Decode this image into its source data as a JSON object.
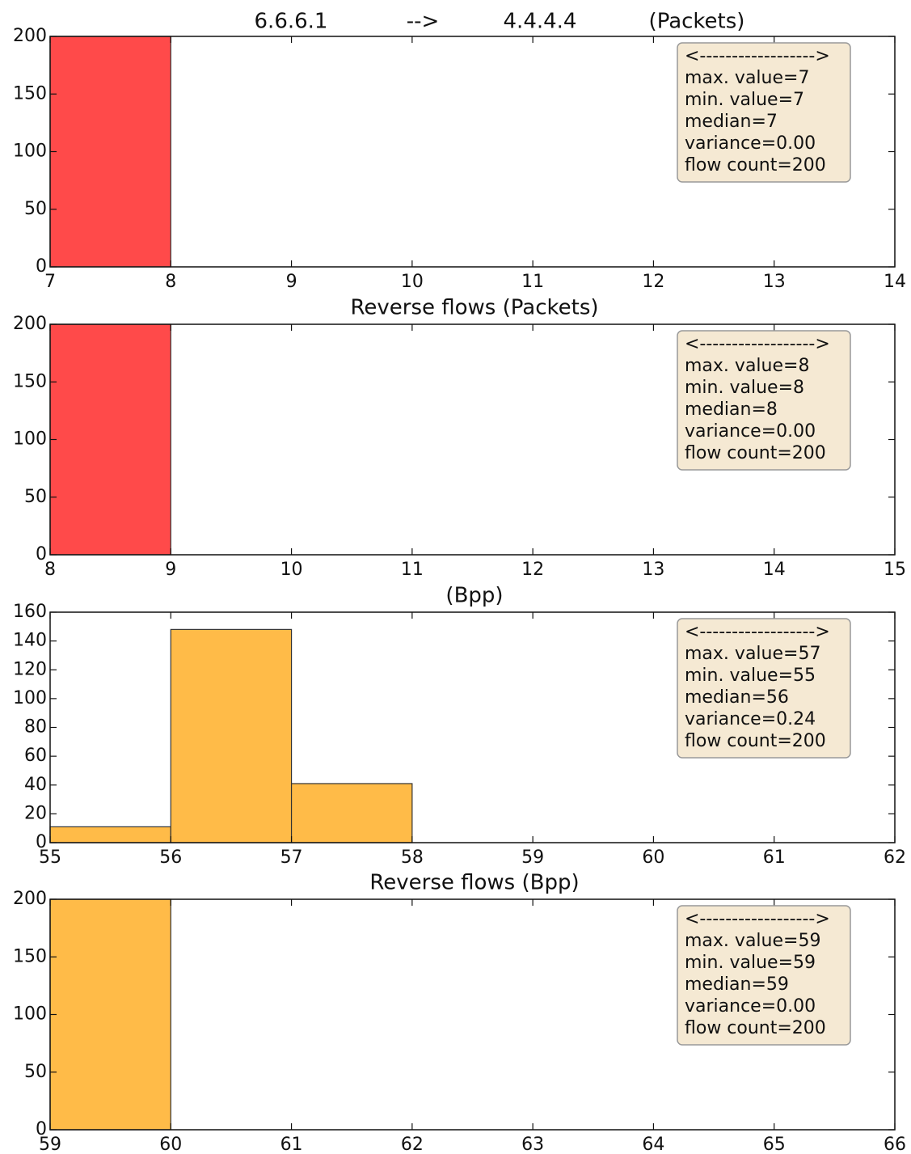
{
  "chart_data": [
    {
      "type": "histogram",
      "title": [
        "6.6.6.1",
        "-->",
        "4.4.4.4",
        "(Packets)"
      ],
      "bins": [
        7,
        8
      ],
      "values": [
        200
      ],
      "color": "#ff4a4a",
      "xlim": [
        7,
        14
      ],
      "xticks": [
        7,
        8,
        9,
        10,
        11,
        12,
        13,
        14
      ],
      "ylim": [
        0,
        200
      ],
      "yticks": [
        0,
        50,
        100,
        150,
        200
      ],
      "annotation": [
        "<------------------>",
        "max. value=7",
        "min. value=7",
        "median=7",
        "variance=0.00",
        "flow count=200"
      ]
    },
    {
      "type": "histogram",
      "title": "Reverse flows (Packets)",
      "bins": [
        8,
        9
      ],
      "values": [
        200
      ],
      "color": "#ff4a4a",
      "xlim": [
        8,
        15
      ],
      "xticks": [
        8,
        9,
        10,
        11,
        12,
        13,
        14,
        15
      ],
      "ylim": [
        0,
        200
      ],
      "yticks": [
        0,
        50,
        100,
        150,
        200
      ],
      "annotation": [
        "<------------------>",
        "max. value=8",
        "min. value=8",
        "median=8",
        "variance=0.00",
        "flow count=200"
      ]
    },
    {
      "type": "histogram",
      "title": "(Bpp)",
      "bins": [
        55,
        56,
        57,
        58
      ],
      "values": [
        11,
        148,
        41
      ],
      "color": "#ffbb48",
      "xlim": [
        55,
        62
      ],
      "xticks": [
        55,
        56,
        57,
        58,
        59,
        60,
        61,
        62
      ],
      "ylim": [
        0,
        160
      ],
      "yticks": [
        0,
        20,
        40,
        60,
        80,
        100,
        120,
        140,
        160
      ],
      "annotation": [
        "<------------------>",
        "max. value=57",
        "min. value=55",
        "median=56",
        "variance=0.24",
        "flow count=200"
      ]
    },
    {
      "type": "histogram",
      "title": "Reverse flows (Bpp)",
      "bins": [
        59,
        60
      ],
      "values": [
        200
      ],
      "color": "#ffbb48",
      "xlim": [
        59,
        66
      ],
      "xticks": [
        59,
        60,
        61,
        62,
        63,
        64,
        65,
        66
      ],
      "ylim": [
        0,
        200
      ],
      "yticks": [
        0,
        50,
        100,
        150,
        200
      ],
      "annotation": [
        "<------------------>",
        "max. value=59",
        "min. value=59",
        "median=59",
        "variance=0.00",
        "flow count=200"
      ]
    }
  ]
}
